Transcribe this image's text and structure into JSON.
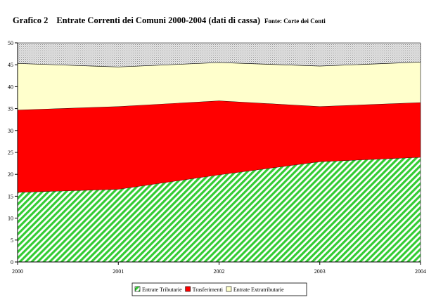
{
  "title": {
    "number": "Grafico 2",
    "text": "Entrate Correnti dei Comuni 2000-2004 (dati di cassa)",
    "source": "Fonte: Corte dei Conti"
  },
  "chart_data": {
    "type": "area",
    "stacked": true,
    "x": [
      "2000",
      "2001",
      "2002",
      "2003",
      "2004"
    ],
    "ylim": [
      0,
      50
    ],
    "yticks": [
      0,
      5,
      10,
      15,
      20,
      25,
      30,
      35,
      40,
      45,
      50
    ],
    "grid": false,
    "legend_position": "bottom",
    "series": [
      {
        "name": "Entrate Tributarie",
        "values": [
          15.9,
          16.6,
          19.9,
          22.9,
          23.9
        ],
        "color": "#33cc33",
        "fill": "diagonal-hatch-green"
      },
      {
        "name": "Trasferimenti",
        "values": [
          18.8,
          18.9,
          16.9,
          12.6,
          12.5
        ],
        "color": "#ff0000",
        "fill": "solid"
      },
      {
        "name": "Entrate Extratributarie",
        "values": [
          10.6,
          9.0,
          8.7,
          9.2,
          9.2
        ],
        "color": "#ffffcc",
        "fill": "solid"
      }
    ],
    "background_fill": "dotted-gray"
  }
}
